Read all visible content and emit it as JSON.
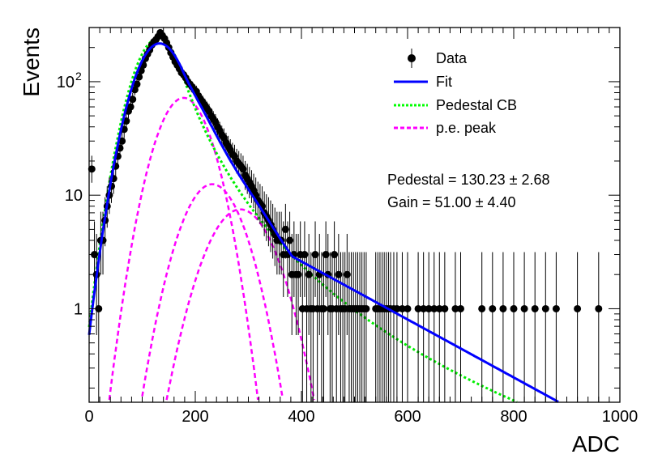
{
  "chart_data": {
    "type": "scatter",
    "title": "",
    "xlabel": "ADC",
    "ylabel": "Events",
    "xlim": [
      0,
      1000
    ],
    "ylim": [
      0.15,
      300
    ],
    "yscale": "log",
    "grid": false,
    "legend_position": "top-right",
    "x_ticks": [
      {
        "value": 0,
        "label": "0"
      },
      {
        "value": 200,
        "label": "200"
      },
      {
        "value": 400,
        "label": "400"
      },
      {
        "value": 600,
        "label": "600"
      },
      {
        "value": 800,
        "label": "800"
      },
      {
        "value": 1000,
        "label": "1000"
      }
    ],
    "y_ticks": [
      {
        "value": 1,
        "label": "1"
      },
      {
        "value": 10,
        "label": "10"
      },
      {
        "value": 100,
        "label": "10",
        "sup": "2"
      }
    ],
    "legend": [
      {
        "label": "Data",
        "color": "#000000",
        "style": "marker"
      },
      {
        "label": "Fit",
        "color": "#0000ff",
        "style": "solid"
      },
      {
        "label": "Pedestal CB",
        "color": "#00ff00",
        "style": "dotted"
      },
      {
        "label": "p.e. peak",
        "color": "#ff00ff",
        "style": "dashed"
      }
    ],
    "annotations": [
      {
        "text": "Pedestal = 130.23 ± 2.68"
      },
      {
        "text": "Gain = 51.00 ± 4.40"
      }
    ],
    "data_points": [
      [
        5,
        17
      ],
      [
        10,
        3
      ],
      [
        14,
        2
      ],
      [
        18,
        1
      ],
      [
        22,
        4
      ],
      [
        26,
        4
      ],
      [
        30,
        6
      ],
      [
        34,
        8
      ],
      [
        38,
        10
      ],
      [
        42,
        12
      ],
      [
        46,
        14
      ],
      [
        50,
        18
      ],
      [
        54,
        22
      ],
      [
        58,
        26
      ],
      [
        62,
        30
      ],
      [
        66,
        38
      ],
      [
        70,
        45
      ],
      [
        74,
        55
      ],
      [
        78,
        60
      ],
      [
        82,
        70
      ],
      [
        86,
        85
      ],
      [
        90,
        95
      ],
      [
        94,
        110
      ],
      [
        98,
        125
      ],
      [
        102,
        140
      ],
      [
        106,
        160
      ],
      [
        110,
        175
      ],
      [
        114,
        190
      ],
      [
        118,
        210
      ],
      [
        122,
        225
      ],
      [
        126,
        235
      ],
      [
        130,
        250
      ],
      [
        134,
        270
      ],
      [
        138,
        255
      ],
      [
        142,
        240
      ],
      [
        146,
        220
      ],
      [
        150,
        200
      ],
      [
        154,
        180
      ],
      [
        158,
        165
      ],
      [
        162,
        150
      ],
      [
        166,
        140
      ],
      [
        170,
        130
      ],
      [
        174,
        120
      ],
      [
        178,
        115
      ],
      [
        182,
        108
      ],
      [
        186,
        100
      ],
      [
        190,
        95
      ],
      [
        194,
        90
      ],
      [
        198,
        85
      ],
      [
        202,
        82
      ],
      [
        206,
        75
      ],
      [
        210,
        70
      ],
      [
        214,
        66
      ],
      [
        218,
        62
      ],
      [
        222,
        58
      ],
      [
        226,
        55
      ],
      [
        230,
        50
      ],
      [
        234,
        47
      ],
      [
        238,
        44
      ],
      [
        242,
        40
      ],
      [
        246,
        37
      ],
      [
        250,
        34
      ],
      [
        254,
        32
      ],
      [
        258,
        29
      ],
      [
        262,
        27
      ],
      [
        266,
        25
      ],
      [
        270,
        23
      ],
      [
        274,
        22
      ],
      [
        278,
        20
      ],
      [
        282,
        19
      ],
      [
        286,
        18
      ],
      [
        290,
        17
      ],
      [
        294,
        15
      ],
      [
        298,
        14
      ],
      [
        302,
        13
      ],
      [
        306,
        12
      ],
      [
        310,
        11
      ],
      [
        314,
        10
      ],
      [
        318,
        9
      ],
      [
        322,
        8.5
      ],
      [
        326,
        8
      ],
      [
        330,
        7
      ],
      [
        334,
        6.5
      ],
      [
        338,
        6
      ],
      [
        342,
        5.5
      ],
      [
        346,
        5
      ],
      [
        350,
        4.5
      ],
      [
        354,
        4
      ],
      [
        358,
        4
      ],
      [
        362,
        4
      ],
      [
        366,
        3
      ],
      [
        370,
        5
      ],
      [
        374,
        3
      ],
      [
        378,
        4
      ],
      [
        382,
        2
      ],
      [
        386,
        3
      ],
      [
        390,
        2
      ],
      [
        394,
        2
      ],
      [
        398,
        3
      ],
      [
        402,
        1
      ],
      [
        406,
        3
      ],
      [
        410,
        1
      ],
      [
        414,
        2
      ],
      [
        418,
        1
      ],
      [
        422,
        1
      ],
      [
        426,
        3
      ],
      [
        430,
        1
      ],
      [
        434,
        2
      ],
      [
        438,
        1
      ],
      [
        442,
        1
      ],
      [
        446,
        3
      ],
      [
        450,
        2
      ],
      [
        454,
        1
      ],
      [
        458,
        1
      ],
      [
        462,
        3
      ],
      [
        466,
        1
      ],
      [
        470,
        2
      ],
      [
        474,
        1
      ],
      [
        478,
        1
      ],
      [
        482,
        1
      ],
      [
        486,
        2
      ],
      [
        490,
        1
      ],
      [
        494,
        1
      ],
      [
        498,
        1
      ],
      [
        502,
        1
      ],
      [
        506,
        1
      ],
      [
        510,
        1
      ],
      [
        514,
        1
      ],
      [
        518,
        1
      ],
      [
        522,
        1
      ],
      [
        540,
        1
      ],
      [
        544,
        1
      ],
      [
        548,
        1
      ],
      [
        552,
        1
      ],
      [
        556,
        1
      ],
      [
        560,
        1
      ],
      [
        564,
        1
      ],
      [
        568,
        1
      ],
      [
        574,
        1
      ],
      [
        580,
        1
      ],
      [
        590,
        1
      ],
      [
        600,
        1
      ],
      [
        620,
        1
      ],
      [
        630,
        1
      ],
      [
        640,
        1
      ],
      [
        650,
        1
      ],
      [
        660,
        1
      ],
      [
        670,
        1
      ],
      [
        690,
        1
      ],
      [
        700,
        1
      ],
      [
        740,
        1
      ],
      [
        760,
        1
      ],
      [
        780,
        1
      ],
      [
        800,
        1
      ],
      [
        820,
        1
      ],
      [
        840,
        1
      ],
      [
        860,
        1
      ],
      [
        880,
        1
      ],
      [
        920,
        1
      ],
      [
        960,
        1
      ]
    ],
    "fit_params": {
      "pedestal_amp": 240,
      "pedestal_mean": 130,
      "pedestal_sigma": 38,
      "pedestal_tail_alpha": 1.2,
      "pedestal_tail_n": 3.5,
      "pe_peaks": [
        {
          "amp": 72,
          "mean": 178,
          "sigma": 40
        },
        {
          "amp": 12.5,
          "mean": 232,
          "sigma": 45
        },
        {
          "amp": 7.5,
          "mean": 285,
          "sigma": 50
        }
      ],
      "fit_tail": {
        "amp": 3.3,
        "x0": 360,
        "decay": 170
      }
    }
  }
}
